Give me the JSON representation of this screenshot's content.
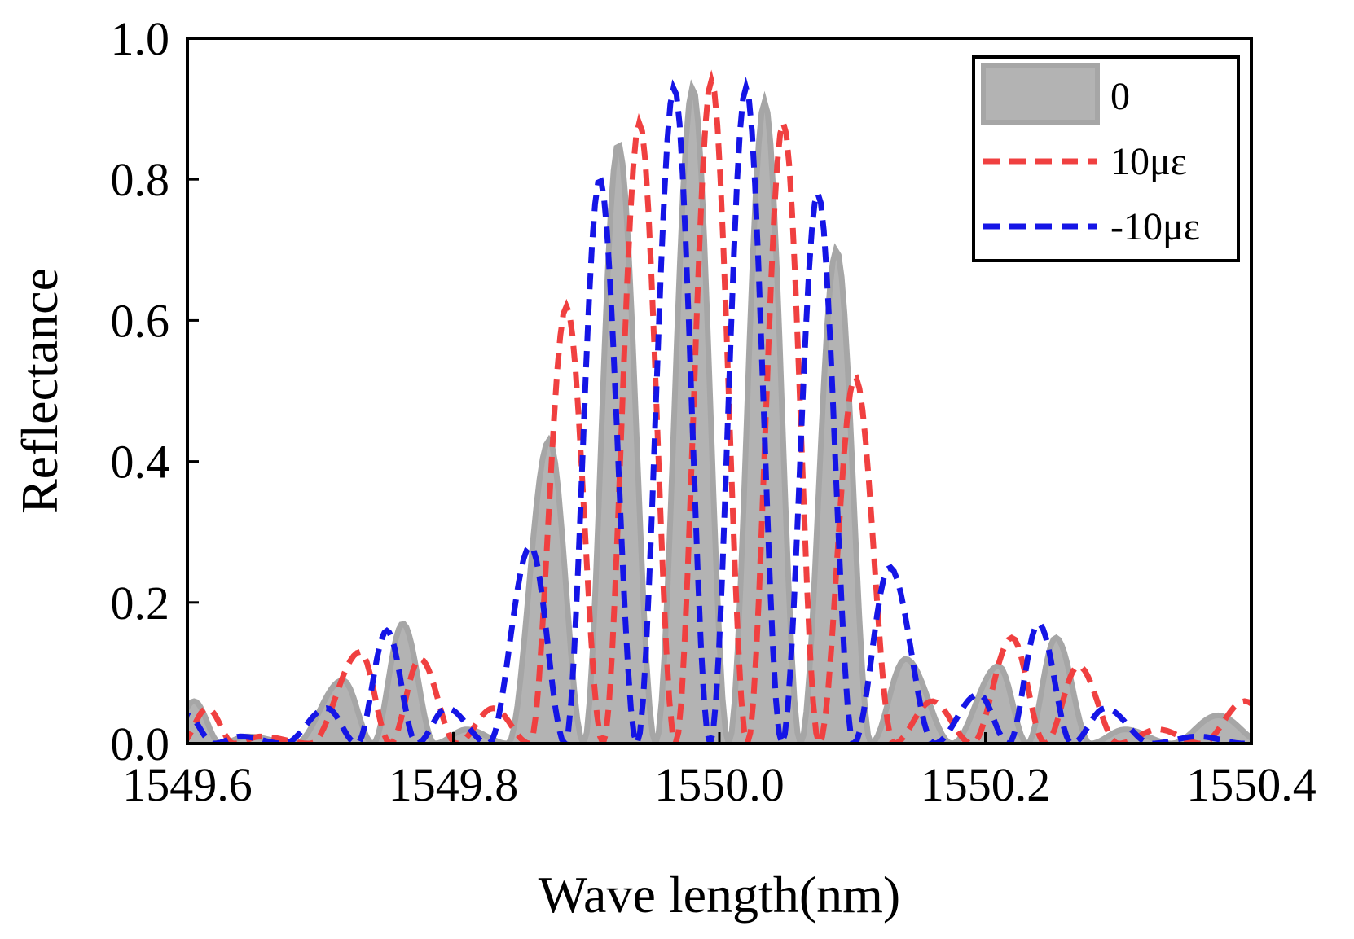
{
  "chart_data": {
    "type": "area",
    "xlabel": "Wave length(nm)",
    "ylabel": "Reflectance",
    "xlim": [
      1549.6,
      1550.4
    ],
    "ylim": [
      0.0,
      1.0
    ],
    "x_ticks": [
      "1549.6",
      "1549.8",
      "1550.0",
      "1550.2",
      "1550.4"
    ],
    "y_ticks": [
      "0.0",
      "0.2",
      "0.4",
      "0.6",
      "0.8",
      "1.0"
    ],
    "grid": false,
    "legend_position": "top-right",
    "series": [
      {
        "name": "0",
        "style": "filled",
        "fill_color": "#b3b3b3",
        "line_color": "#a6a6a6",
        "peaks": [
          {
            "x": 1549.605,
            "y": 0.06
          },
          {
            "x": 1549.645,
            "y": 0.01
          },
          {
            "x": 1549.717,
            "y": 0.09
          },
          {
            "x": 1549.762,
            "y": 0.17
          },
          {
            "x": 1549.81,
            "y": 0.02
          },
          {
            "x": 1549.872,
            "y": 0.43
          },
          {
            "x": 1549.924,
            "y": 0.85
          },
          {
            "x": 1549.98,
            "y": 0.93
          },
          {
            "x": 1550.034,
            "y": 0.91
          },
          {
            "x": 1550.088,
            "y": 0.7
          },
          {
            "x": 1550.14,
            "y": 0.12
          },
          {
            "x": 1550.21,
            "y": 0.11
          },
          {
            "x": 1550.253,
            "y": 0.15
          },
          {
            "x": 1550.305,
            "y": 0.02
          },
          {
            "x": 1550.375,
            "y": 0.04
          }
        ]
      },
      {
        "name": "10με",
        "style": "dashed",
        "line_color": "#f04040",
        "peaks": [
          {
            "x": 1549.615,
            "y": 0.05
          },
          {
            "x": 1549.655,
            "y": 0.01
          },
          {
            "x": 1549.73,
            "y": 0.13
          },
          {
            "x": 1549.775,
            "y": 0.12
          },
          {
            "x": 1549.83,
            "y": 0.05
          },
          {
            "x": 1549.885,
            "y": 0.62
          },
          {
            "x": 1549.94,
            "y": 0.88
          },
          {
            "x": 1549.994,
            "y": 0.94
          },
          {
            "x": 1550.048,
            "y": 0.88
          },
          {
            "x": 1550.102,
            "y": 0.52
          },
          {
            "x": 1550.16,
            "y": 0.06
          },
          {
            "x": 1550.22,
            "y": 0.15
          },
          {
            "x": 1550.27,
            "y": 0.11
          },
          {
            "x": 1550.33,
            "y": 0.02
          },
          {
            "x": 1550.395,
            "y": 0.06
          }
        ]
      },
      {
        "name": "-10με",
        "style": "dashed",
        "line_color": "#1515e6",
        "peaks": [
          {
            "x": 1549.6,
            "y": 0.04
          },
          {
            "x": 1549.64,
            "y": 0.01
          },
          {
            "x": 1549.705,
            "y": 0.05
          },
          {
            "x": 1549.75,
            "y": 0.16
          },
          {
            "x": 1549.795,
            "y": 0.05
          },
          {
            "x": 1549.858,
            "y": 0.28
          },
          {
            "x": 1549.91,
            "y": 0.8
          },
          {
            "x": 1549.966,
            "y": 0.93
          },
          {
            "x": 1550.02,
            "y": 0.93
          },
          {
            "x": 1550.074,
            "y": 0.78
          },
          {
            "x": 1550.128,
            "y": 0.25
          },
          {
            "x": 1550.195,
            "y": 0.07
          },
          {
            "x": 1550.24,
            "y": 0.17
          },
          {
            "x": 1550.29,
            "y": 0.05
          },
          {
            "x": 1550.36,
            "y": 0.01
          }
        ]
      }
    ]
  }
}
